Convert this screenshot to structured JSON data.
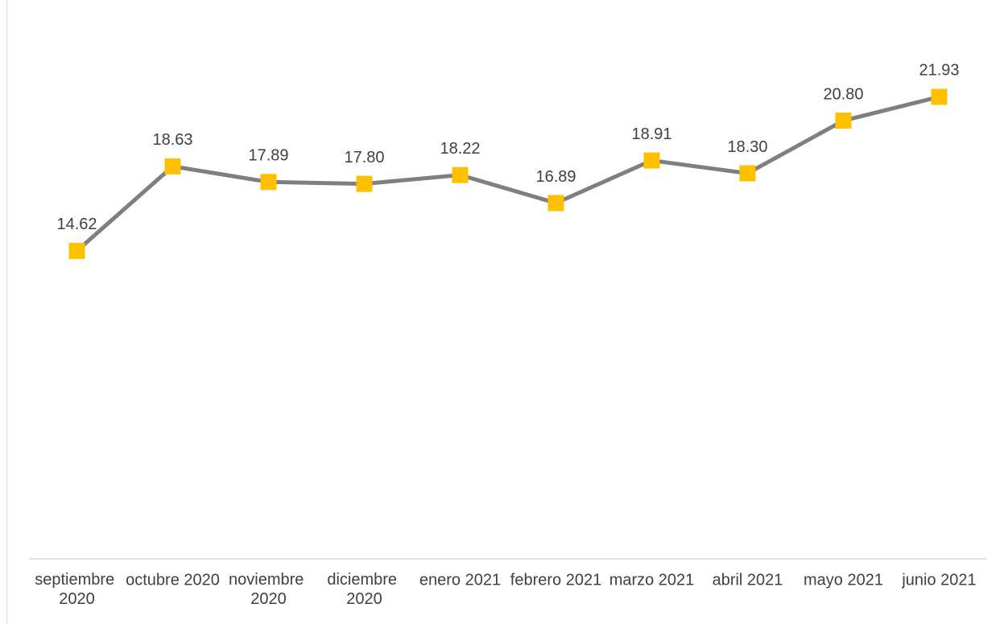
{
  "chart_data": {
    "type": "line",
    "categories": [
      "septiembre 2020",
      "octubre 2020",
      "noviembre 2020",
      "diciembre 2020",
      "enero 2021",
      "febrero 2021",
      "marzo 2021",
      "abril 2021",
      "mayo 2021",
      "junio 2021"
    ],
    "series": [
      {
        "color": "#7f7f7f",
        "marker_color": "#ffc000",
        "values": [
          14.62,
          18.63,
          17.89,
          17.8,
          18.22,
          16.89,
          18.91,
          18.3,
          20.8,
          21.93
        ],
        "value_labels": [
          "14.62",
          "18.63",
          "17.89",
          "17.80",
          "18.22",
          "16.89",
          "18.91",
          "18.30",
          "20.80",
          "21.93"
        ]
      }
    ],
    "ylim": [
      0,
      25
    ]
  }
}
